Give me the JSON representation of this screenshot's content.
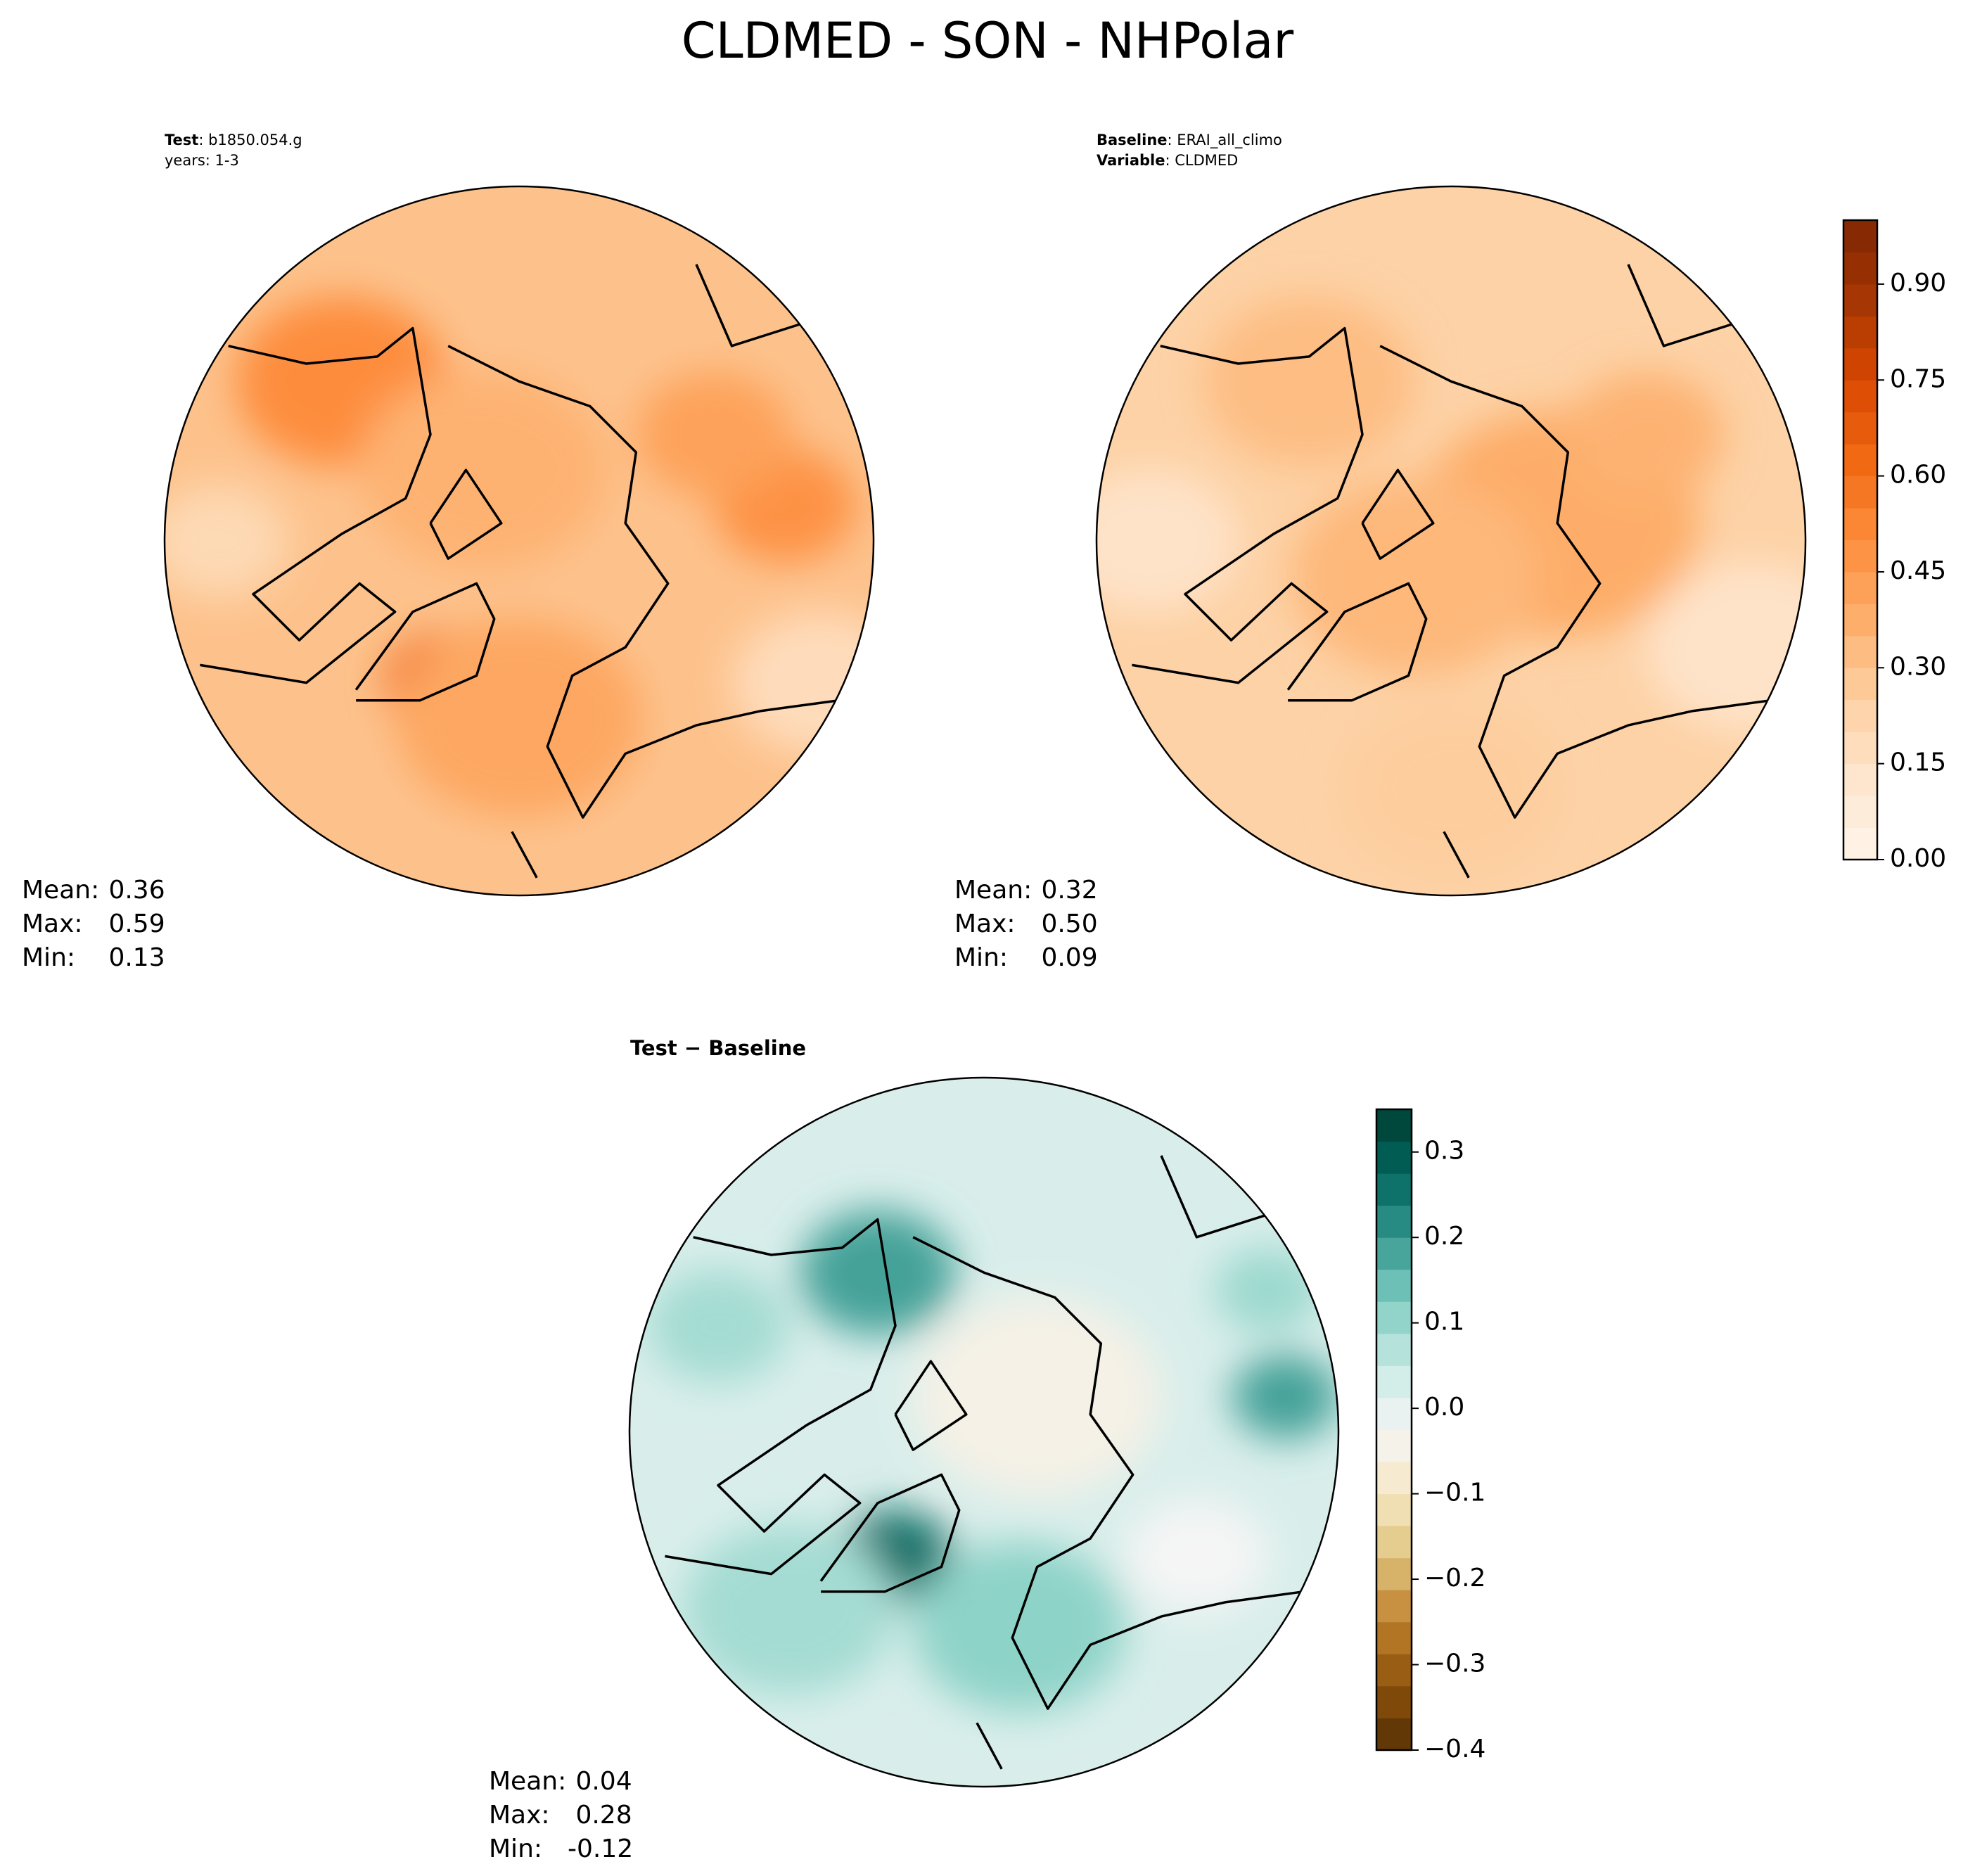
{
  "title": "CLDMED - SON - NHPolar",
  "panels": [
    {
      "header": [
        {
          "key": "Test",
          "value": ": b1850.054.g"
        },
        {
          "text": "years: 1-3"
        }
      ],
      "stats": [
        {
          "label": "Mean:",
          "value": " 0.36"
        },
        {
          "label": "Max:",
          "value": " 0.59"
        },
        {
          "label": "Min:",
          "value": " 0.13"
        }
      ]
    },
    {
      "header": [
        {
          "key": "Baseline",
          "value": ": ERAI_all_climo"
        },
        {
          "key": "Variable",
          "value": ": CLDMED"
        }
      ],
      "stats": [
        {
          "label": "Mean:",
          "value": " 0.32"
        },
        {
          "label": "Max:",
          "value": " 0.50"
        },
        {
          "label": "Min:",
          "value": " 0.09"
        }
      ]
    },
    {
      "header": [
        {
          "key": "Test − Baseline"
        }
      ],
      "stats": [
        {
          "label": "Mean:",
          "value": " 0.04"
        },
        {
          "label": "Max:",
          "value": " 0.28"
        },
        {
          "label": "Min:",
          "value": "-0.12"
        }
      ]
    }
  ],
  "colorbars": [
    {
      "cmap": "Oranges",
      "lim": [
        0,
        1
      ],
      "ticks": [
        {
          "value": 0,
          "label": "0.00"
        },
        0.15,
        {
          "value": 0.3,
          "label": "0.30"
        },
        0.45,
        {
          "value": 0.6,
          "label": "0.60"
        },
        0.75,
        {
          "value": 0.9,
          "label": "0.90"
        }
      ]
    },
    {
      "cmap": "BrBG",
      "lim": [
        -0.4,
        0.35
      ],
      "ticks": [
        {
          "value": -0.4,
          "label": "−0.4"
        },
        {
          "value": -0.3,
          "label": "−0.3"
        },
        {
          "value": -0.2,
          "label": "−0.2"
        },
        {
          "value": -0.1,
          "label": "−0.1"
        },
        {
          "value": 0,
          "label": "0.0"
        },
        0.1,
        0.2,
        0.3
      ]
    }
  ]
}
